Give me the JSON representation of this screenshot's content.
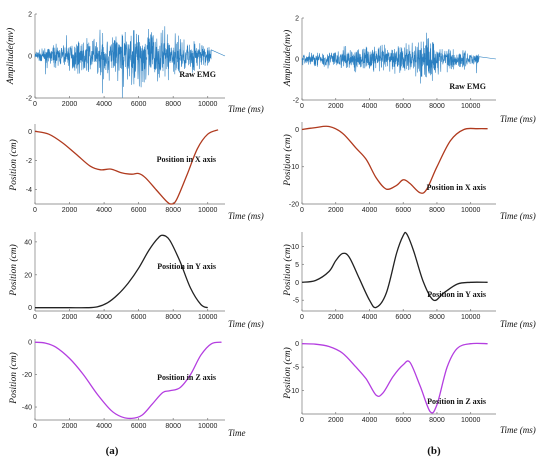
{
  "chart_data": [
    {
      "panel": "(a)",
      "type": "line",
      "ylabel": "Amplitude(mv)",
      "xlabel": "Time (ms)",
      "annotation": "Raw EMG",
      "color": "#2a7fc1",
      "xlim": [
        0,
        11000
      ],
      "ylim": [
        -2,
        2
      ],
      "xticks": [
        0,
        2000,
        4000,
        6000,
        8000,
        10000
      ],
      "yticks": [
        2,
        0,
        -2
      ],
      "signal": {
        "kind": "emg",
        "start": 0,
        "end": 10200,
        "tail_end": 11000,
        "envelope": [
          [
            0,
            0.3
          ],
          [
            2000,
            0.8
          ],
          [
            4000,
            1.3
          ],
          [
            6000,
            1.9
          ],
          [
            8000,
            1.3
          ],
          [
            10200,
            0.6
          ]
        ]
      }
    },
    {
      "panel": "(a)",
      "type": "line",
      "ylabel": "Position (cm)",
      "xlabel": "Time (ms)",
      "annotation": "Position in X axis",
      "color": "#b03a1e",
      "xlim": [
        0,
        11000
      ],
      "ylim": [
        -5,
        0.5
      ],
      "xticks": [
        0,
        2000,
        4000,
        6000,
        8000,
        10000
      ],
      "yticks": [
        0,
        -2,
        -4
      ],
      "x": [
        0,
        800,
        1600,
        2400,
        3200,
        3800,
        4400,
        5000,
        5600,
        6000,
        6400,
        7000,
        7600,
        7900,
        8200,
        8800,
        9400,
        10000,
        10600
      ],
      "y": [
        0,
        -0.2,
        -0.8,
        -1.6,
        -2.4,
        -2.65,
        -2.6,
        -2.85,
        -2.95,
        -2.9,
        -3.2,
        -4.0,
        -4.8,
        -5.0,
        -4.7,
        -3.0,
        -1.2,
        -0.2,
        0.1
      ]
    },
    {
      "panel": "(a)",
      "type": "line",
      "ylabel": "Position (cm)",
      "xlabel": "Time (ms)",
      "annotation": "Position in Y axis",
      "color": "#222222",
      "xlim": [
        0,
        11000
      ],
      "ylim": [
        -2,
        46
      ],
      "xticks": [
        0,
        2000,
        4000,
        6000,
        8000,
        10000
      ],
      "yticks": [
        40,
        20,
        0
      ],
      "x": [
        0,
        1000,
        2000,
        3000,
        3600,
        4200,
        4800,
        5400,
        6000,
        6600,
        7100,
        7400,
        7800,
        8400,
        9000,
        9600,
        10000
      ],
      "y": [
        0,
        0,
        0,
        0,
        0.5,
        3,
        8,
        15,
        24,
        35,
        42,
        44,
        41,
        28,
        12,
        2,
        0
      ]
    },
    {
      "panel": "(a)",
      "type": "line",
      "ylabel": "Position (cm)",
      "xlabel": "Time",
      "annotation": "Position in Z axis",
      "color": "#b43ee0",
      "xlim": [
        0,
        11000
      ],
      "ylim": [
        -48,
        2
      ],
      "xticks": [
        0,
        2000,
        4000,
        6000,
        8000,
        10000
      ],
      "yticks": [
        0,
        -20,
        -40
      ],
      "x": [
        0,
        600,
        1200,
        2000,
        2800,
        3600,
        4400,
        5000,
        5600,
        6200,
        6800,
        7400,
        7800,
        8400,
        9000,
        9600,
        10200,
        10800
      ],
      "y": [
        0,
        -0.5,
        -3,
        -10,
        -20,
        -32,
        -42,
        -46,
        -47,
        -45,
        -38,
        -31,
        -30,
        -28,
        -20,
        -8,
        -1,
        0
      ]
    },
    {
      "panel": "(b)",
      "type": "line",
      "ylabel": "Amplitude(mv)",
      "xlabel": "Time (ms)",
      "annotation": "Raw EMG",
      "color": "#2a7fc1",
      "xlim": [
        0,
        11500
      ],
      "ylim": [
        -2,
        2
      ],
      "xticks": [
        0,
        2000,
        4000,
        6000,
        8000,
        10000
      ],
      "yticks": [
        2,
        0,
        -2
      ],
      "signal": {
        "kind": "emg",
        "start": 0,
        "end": 10500,
        "tail_end": 11500,
        "envelope": [
          [
            0,
            0.4
          ],
          [
            3000,
            0.7
          ],
          [
            6000,
            0.9
          ],
          [
            7600,
            1.6
          ],
          [
            8200,
            0.8
          ],
          [
            10500,
            0.5
          ]
        ]
      }
    },
    {
      "panel": "(b)",
      "type": "line",
      "ylabel": "Position (cm)",
      "xlabel": "Time (ms)",
      "annotation": "Position in X axis",
      "color": "#b03a1e",
      "xlim": [
        0,
        11500
      ],
      "ylim": [
        -20,
        2
      ],
      "xticks": [
        0,
        2000,
        4000,
        6000,
        8000,
        10000
      ],
      "yticks": [
        0,
        -10,
        -20
      ],
      "x": [
        0,
        800,
        1600,
        2400,
        3200,
        3800,
        4400,
        5000,
        5600,
        6000,
        6400,
        7000,
        7400,
        8000,
        8800,
        9600,
        10400,
        11000
      ],
      "y": [
        0,
        0.5,
        0.8,
        -1,
        -5,
        -8,
        -13,
        -16,
        -15,
        -13.5,
        -14.5,
        -17,
        -16,
        -10,
        -3,
        0,
        0.2,
        0.2
      ]
    },
    {
      "panel": "(b)",
      "type": "line",
      "ylabel": "Position (cm)",
      "xlabel": "Time (ms)",
      "annotation": "Position in Y axis",
      "color": "#222222",
      "xlim": [
        0,
        11500
      ],
      "ylim": [
        -8,
        14
      ],
      "xticks": [
        0,
        2000,
        4000,
        6000,
        8000,
        10000
      ],
      "yticks": [
        10,
        5,
        0,
        -5
      ],
      "x": [
        0,
        800,
        1600,
        2000,
        2400,
        2800,
        3400,
        4000,
        4400,
        5000,
        5600,
        6000,
        6200,
        6600,
        7200,
        7800,
        8400,
        9200,
        10000,
        11000
      ],
      "y": [
        0,
        0.5,
        3,
        6,
        8,
        7,
        1,
        -5,
        -7,
        -3,
        8,
        13,
        13.5,
        9,
        0,
        -5,
        -3,
        -0.5,
        0,
        0
      ]
    },
    {
      "panel": "(b)",
      "type": "line",
      "ylabel": "Position (cm)",
      "xlabel": "Time (ms)",
      "annotation": "Position in Z axis",
      "color": "#b43ee0",
      "xlim": [
        0,
        11500
      ],
      "ylim": [
        -15,
        1
      ],
      "xticks": [
        0,
        2000,
        4000,
        6000,
        8000,
        10000
      ],
      "yticks": [
        0,
        -5,
        -10
      ],
      "x": [
        0,
        800,
        1600,
        2400,
        3200,
        3800,
        4400,
        4800,
        5400,
        6000,
        6400,
        7000,
        7600,
        8000,
        8600,
        9200,
        10000,
        11000
      ],
      "y": [
        0,
        -0.1,
        -0.6,
        -2,
        -5,
        -7.5,
        -11,
        -10.5,
        -7,
        -4.5,
        -4,
        -9,
        -14.5,
        -13,
        -5,
        -1,
        0,
        0
      ]
    }
  ],
  "captions": [
    "(a)",
    "(b)"
  ]
}
